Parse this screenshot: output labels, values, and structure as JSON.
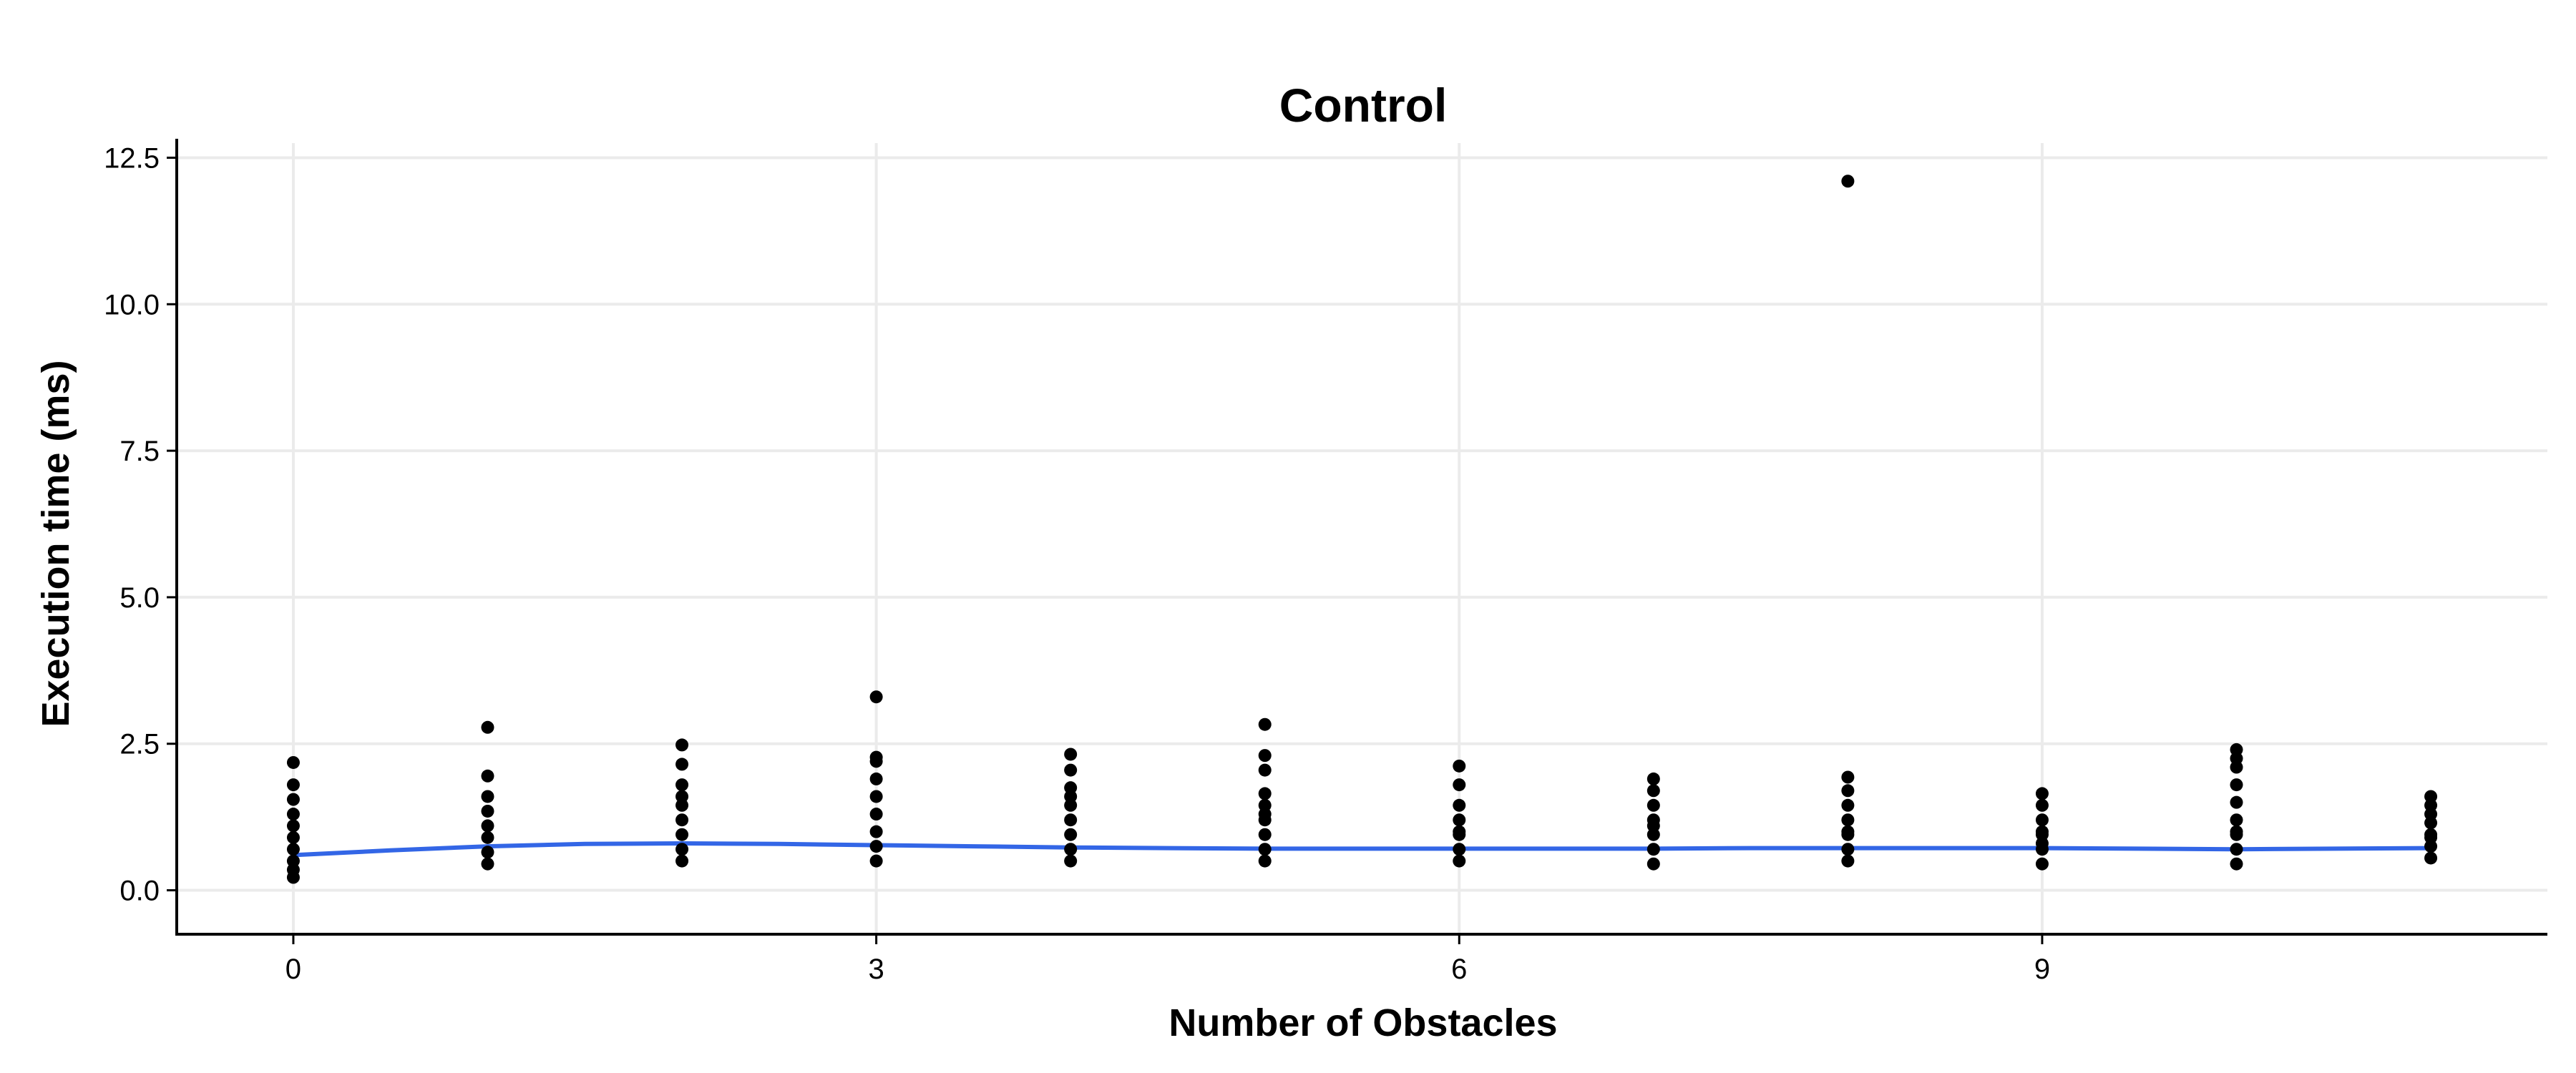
{
  "chart_data": {
    "type": "scatter",
    "title": "Control",
    "xlabel": "Number of Obstacles",
    "ylabel": "Execution time (ms)",
    "xlim": [
      -0.6,
      11.6
    ],
    "ylim": [
      -0.75,
      12.75
    ],
    "xticks": [
      0,
      3,
      6,
      9
    ],
    "yticks": [
      0.0,
      2.5,
      5.0,
      7.5,
      10.0,
      12.5
    ],
    "ytick_labels": [
      "0.0",
      "2.5",
      "5.0",
      "7.5",
      "10.0",
      "12.5"
    ],
    "grid": true,
    "legend": "none",
    "colors": {
      "points": "#000000",
      "smooth_line": "#3366e6",
      "grid": "#ebebeb",
      "axis": "#000000"
    },
    "series": [
      {
        "x": [
          0,
          0,
          0,
          0,
          0,
          0,
          0,
          0,
          0,
          0,
          1,
          1,
          1,
          1,
          1,
          1,
          1,
          1,
          2,
          2,
          2,
          2,
          2,
          2,
          2,
          2,
          2,
          3,
          3,
          3,
          3,
          3,
          3,
          3,
          3,
          3,
          4,
          4,
          4,
          4,
          4,
          4,
          4,
          4,
          4,
          5,
          5,
          5,
          5,
          5,
          5,
          5,
          5,
          5,
          5,
          6,
          6,
          6,
          6,
          6,
          6,
          6,
          6,
          7,
          7,
          7,
          7,
          7,
          7,
          7,
          7,
          8,
          8,
          8,
          8,
          8,
          8,
          8,
          8,
          8,
          9,
          9,
          9,
          9,
          9,
          9,
          9,
          9,
          10,
          10,
          10,
          10,
          10,
          10,
          10,
          10,
          10,
          10,
          11,
          11,
          11,
          11,
          11,
          11,
          11,
          11
        ],
        "y": [
          0.22,
          0.35,
          0.5,
          0.7,
          0.9,
          1.1,
          1.3,
          1.55,
          1.8,
          2.18,
          0.45,
          0.65,
          0.9,
          1.1,
          1.35,
          1.6,
          1.95,
          2.78,
          0.5,
          0.7,
          0.95,
          1.2,
          1.45,
          1.8,
          2.15,
          2.48,
          1.6,
          0.5,
          0.75,
          1.0,
          1.3,
          1.6,
          1.9,
          2.2,
          2.27,
          3.3,
          0.5,
          0.7,
          0.95,
          1.2,
          1.45,
          1.75,
          2.05,
          2.32,
          1.6,
          0.5,
          0.7,
          0.95,
          1.2,
          1.45,
          1.65,
          2.05,
          2.3,
          2.83,
          1.3,
          0.5,
          0.7,
          0.95,
          1.2,
          1.45,
          1.8,
          2.12,
          1.0,
          0.45,
          0.7,
          0.95,
          1.2,
          1.45,
          1.7,
          1.9,
          1.1,
          0.5,
          0.7,
          0.95,
          1.2,
          1.45,
          1.7,
          1.93,
          12.1,
          1.0,
          0.45,
          0.7,
          0.95,
          1.2,
          1.45,
          1.65,
          1.0,
          0.8,
          0.45,
          0.7,
          0.95,
          1.2,
          1.5,
          1.8,
          2.1,
          2.25,
          2.4,
          1.0,
          0.55,
          0.75,
          0.95,
          1.15,
          1.3,
          1.45,
          1.6,
          0.9
        ]
      }
    ],
    "smooth_line": {
      "x": [
        0,
        0.5,
        1,
        1.5,
        2,
        2.5,
        3,
        3.5,
        4,
        4.5,
        5,
        5.5,
        6,
        6.5,
        7,
        7.5,
        8,
        8.5,
        9,
        9.5,
        10,
        10.5,
        11
      ],
      "y": [
        0.6,
        0.68,
        0.75,
        0.79,
        0.8,
        0.79,
        0.77,
        0.75,
        0.73,
        0.72,
        0.71,
        0.71,
        0.71,
        0.71,
        0.71,
        0.72,
        0.72,
        0.72,
        0.72,
        0.71,
        0.7,
        0.71,
        0.72
      ]
    }
  }
}
